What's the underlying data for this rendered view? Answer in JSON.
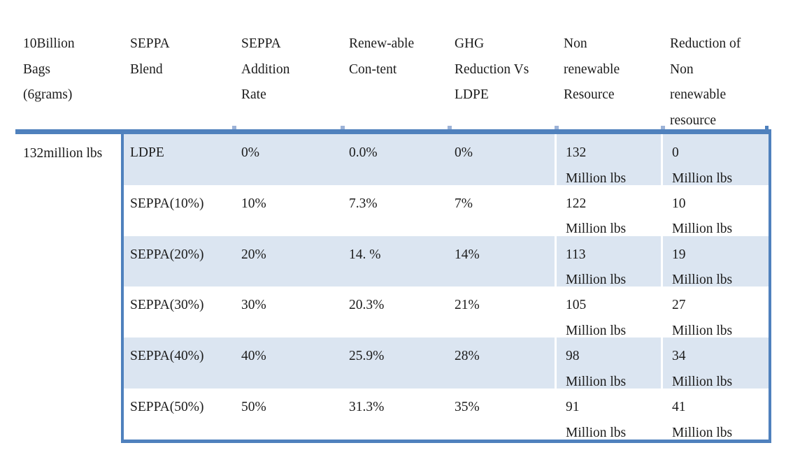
{
  "colors": {
    "accent_border": "#4F81BD",
    "divider_tick": "#9DB3D7",
    "row_shading": "#DBE5F1",
    "text": "#1C1C1C"
  },
  "table": {
    "headers": [
      "10Billion Bags (6grams)",
      "SEPPA Blend",
      "SEPPA Addition Rate",
      "Renew-able Con-tent",
      "GHG Reduction Vs LDPE",
      "Non renewable Resource",
      "Reduction of Non renewable resource"
    ],
    "row_group_label": "132million lbs",
    "rows": [
      {
        "blend": "LDPE",
        "rate": "0%",
        "renewable": "0.0%",
        "ghg": "0%",
        "nonrenew": {
          "value": "132",
          "unit": "Million lbs"
        },
        "reduction": {
          "value": "0",
          "unit": "Million lbs"
        }
      },
      {
        "blend": "SEPPA(10%)",
        "rate": "10%",
        "renewable": "7.3%",
        "ghg": "7%",
        "nonrenew": {
          "value": "122",
          "unit": "Million lbs"
        },
        "reduction": {
          "value": "10",
          "unit": "Million lbs"
        }
      },
      {
        "blend": "SEPPA(20%)",
        "rate": "20%",
        "renewable": "14. %",
        "ghg": "14%",
        "nonrenew": {
          "value": "113",
          "unit": "Million lbs"
        },
        "reduction": {
          "value": "19",
          "unit": "Million lbs"
        }
      },
      {
        "blend": "SEPPA(30%)",
        "rate": "30%",
        "renewable": "20.3%",
        "ghg": "21%",
        "nonrenew": {
          "value": "105",
          "unit": "Million lbs"
        },
        "reduction": {
          "value": "27",
          "unit": "Million lbs"
        }
      },
      {
        "blend": "SEPPA(40%)",
        "rate": "40%",
        "renewable": "25.9%",
        "ghg": "28%",
        "nonrenew": {
          "value": "98",
          "unit": "Million lbs"
        },
        "reduction": {
          "value": "34",
          "unit": "Million lbs"
        }
      },
      {
        "blend": "SEPPA(50%)",
        "rate": "50%",
        "renewable": "31.3%",
        "ghg": "35%",
        "nonrenew": {
          "value": "91",
          "unit": "Million lbs"
        },
        "reduction": {
          "value": "41",
          "unit": "Million lbs"
        }
      }
    ]
  }
}
